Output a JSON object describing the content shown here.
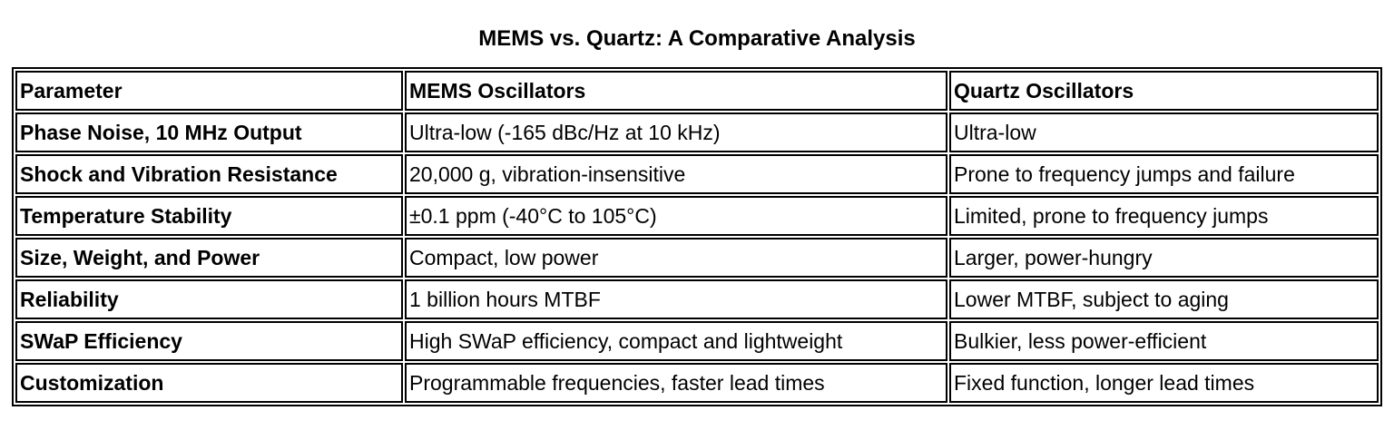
{
  "header": {
    "title": "MEMS vs. Quartz: A Comparative Analysis"
  },
  "table": {
    "columns": [
      "Parameter",
      "MEMS Oscillators",
      "Quartz Oscillators"
    ],
    "rows": [
      [
        "Phase Noise, 10 MHz Output",
        "Ultra-low (-165 dBc/Hz at 10 kHz)",
        "Ultra-low"
      ],
      [
        "Shock and Vibration Resistance",
        "20,000 g, vibration-insensitive",
        "Prone to frequency jumps and failure"
      ],
      [
        "Temperature Stability",
        "±0.1 ppm (-40°C to 105°C)",
        "Limited, prone to frequency jumps"
      ],
      [
        "Size, Weight, and Power",
        "Compact, low power",
        "Larger, power-hungry"
      ],
      [
        "Reliability",
        "1 billion hours MTBF",
        "Lower MTBF, subject to aging"
      ],
      [
        "SWaP Efficiency",
        "High SWaP efficiency, compact and lightweight",
        "Bulkier, less power-efficient"
      ],
      [
        "Customization",
        "Programmable frequencies, faster lead times",
        "Fixed function, longer lead times"
      ]
    ]
  }
}
